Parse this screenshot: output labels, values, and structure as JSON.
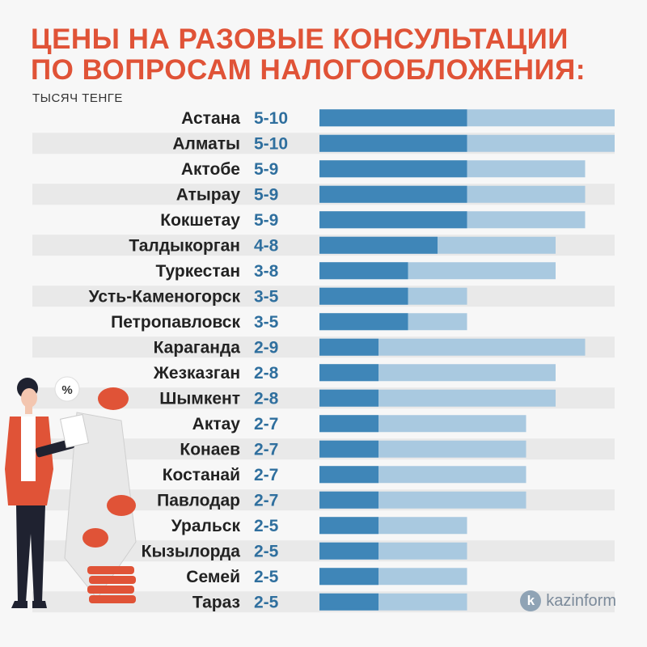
{
  "header": {
    "title_line1": "ЦЕНЫ НА РАЗОВЫЕ КОНСУЛЬТАЦИИ",
    "title_line2": "ПО ВОПРОСАМ НАЛОГООБЛОЖЕНИЯ:",
    "subtitle": "ТЫСЯЧ ТЕНГЕ"
  },
  "brand": {
    "logo_letter": "k",
    "name": "kazinform"
  },
  "colors": {
    "title": "#e05337",
    "bar_dark": "#3f86b8",
    "bar_light": "#a9c9e0",
    "row_stripe": "#e9e9e9",
    "range_text": "#2f6f9e"
  },
  "illustration": {
    "badge": "%"
  },
  "chart_data": {
    "type": "bar",
    "orientation": "horizontal",
    "style": "range",
    "unit": "тысяч тенге",
    "xlim": [
      0,
      10
    ],
    "categories": [
      "Астана",
      "Алматы",
      "Актобе",
      "Атырау",
      "Кокшетау",
      "Талдыкорган",
      "Туркестан",
      "Усть-Каменогорск",
      "Петропавловск",
      "Караганда",
      "Жезказган",
      "Шымкент",
      "Актау",
      "Конаев",
      "Костанай",
      "Павлодар",
      "Уральск",
      "Кызылорда",
      "Семей",
      "Тараз"
    ],
    "labels": [
      "5-10",
      "5-10",
      "5-9",
      "5-9",
      "5-9",
      "4-8",
      "3-8",
      "3-5",
      "3-5",
      "2-9",
      "2-8",
      "2-8",
      "2-7",
      "2-7",
      "2-7",
      "2-7",
      "2-5",
      "2-5",
      "2-5",
      "2-5"
    ],
    "min": [
      5,
      5,
      5,
      5,
      5,
      4,
      3,
      3,
      3,
      2,
      2,
      2,
      2,
      2,
      2,
      2,
      2,
      2,
      2,
      2
    ],
    "max": [
      10,
      10,
      9,
      9,
      9,
      8,
      8,
      5,
      5,
      9,
      8,
      8,
      7,
      7,
      7,
      7,
      5,
      5,
      5,
      5
    ]
  }
}
